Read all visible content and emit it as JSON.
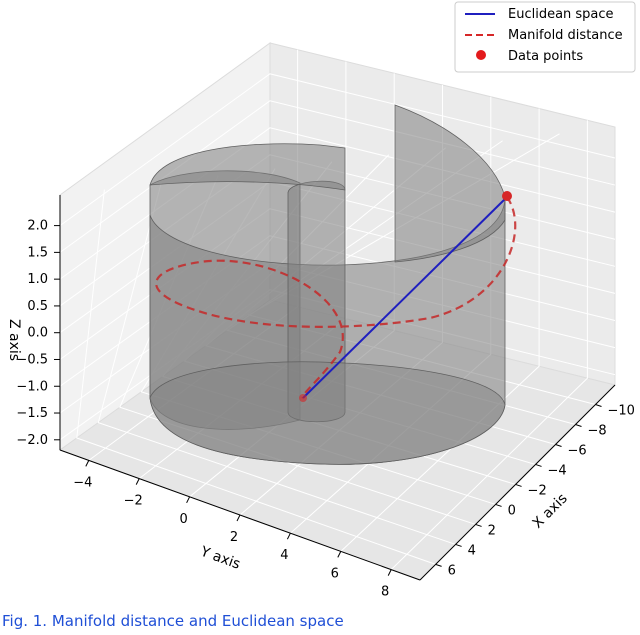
{
  "chart_data": {
    "type": "3d",
    "xlabel": "X axis",
    "ylabel": "Y axis",
    "zlabel": "Z axis",
    "x_ticks": [
      "−10",
      "−8",
      "−6",
      "−4",
      "−2",
      "0",
      "2",
      "4",
      "6"
    ],
    "y_ticks": [
      "−4",
      "−2",
      "0",
      "2",
      "4",
      "6",
      "8"
    ],
    "z_ticks": [
      "2.0",
      "1.5",
      "1.0",
      "0.5",
      "0.0",
      "−0.5",
      "−1.0",
      "−1.5",
      "−2.0"
    ],
    "xlim": [
      -11,
      7
    ],
    "ylim": [
      -5,
      9
    ],
    "zlim": [
      -2.2,
      2.2
    ],
    "grid": true,
    "legend_position": "top-right",
    "series": [
      {
        "name": "Euclidean space",
        "style": "solid line",
        "color": "#1f1fbf"
      },
      {
        "name": "Manifold distance",
        "style": "dashed line",
        "color": "#d62728"
      },
      {
        "name": "Data points",
        "style": "markers",
        "color": "#d62728"
      }
    ],
    "surface": {
      "shape": "spiral (Swiss roll) sheet",
      "color": "#808080"
    },
    "caption": "Fig. 1. Manifold distance and Euclidean space"
  }
}
